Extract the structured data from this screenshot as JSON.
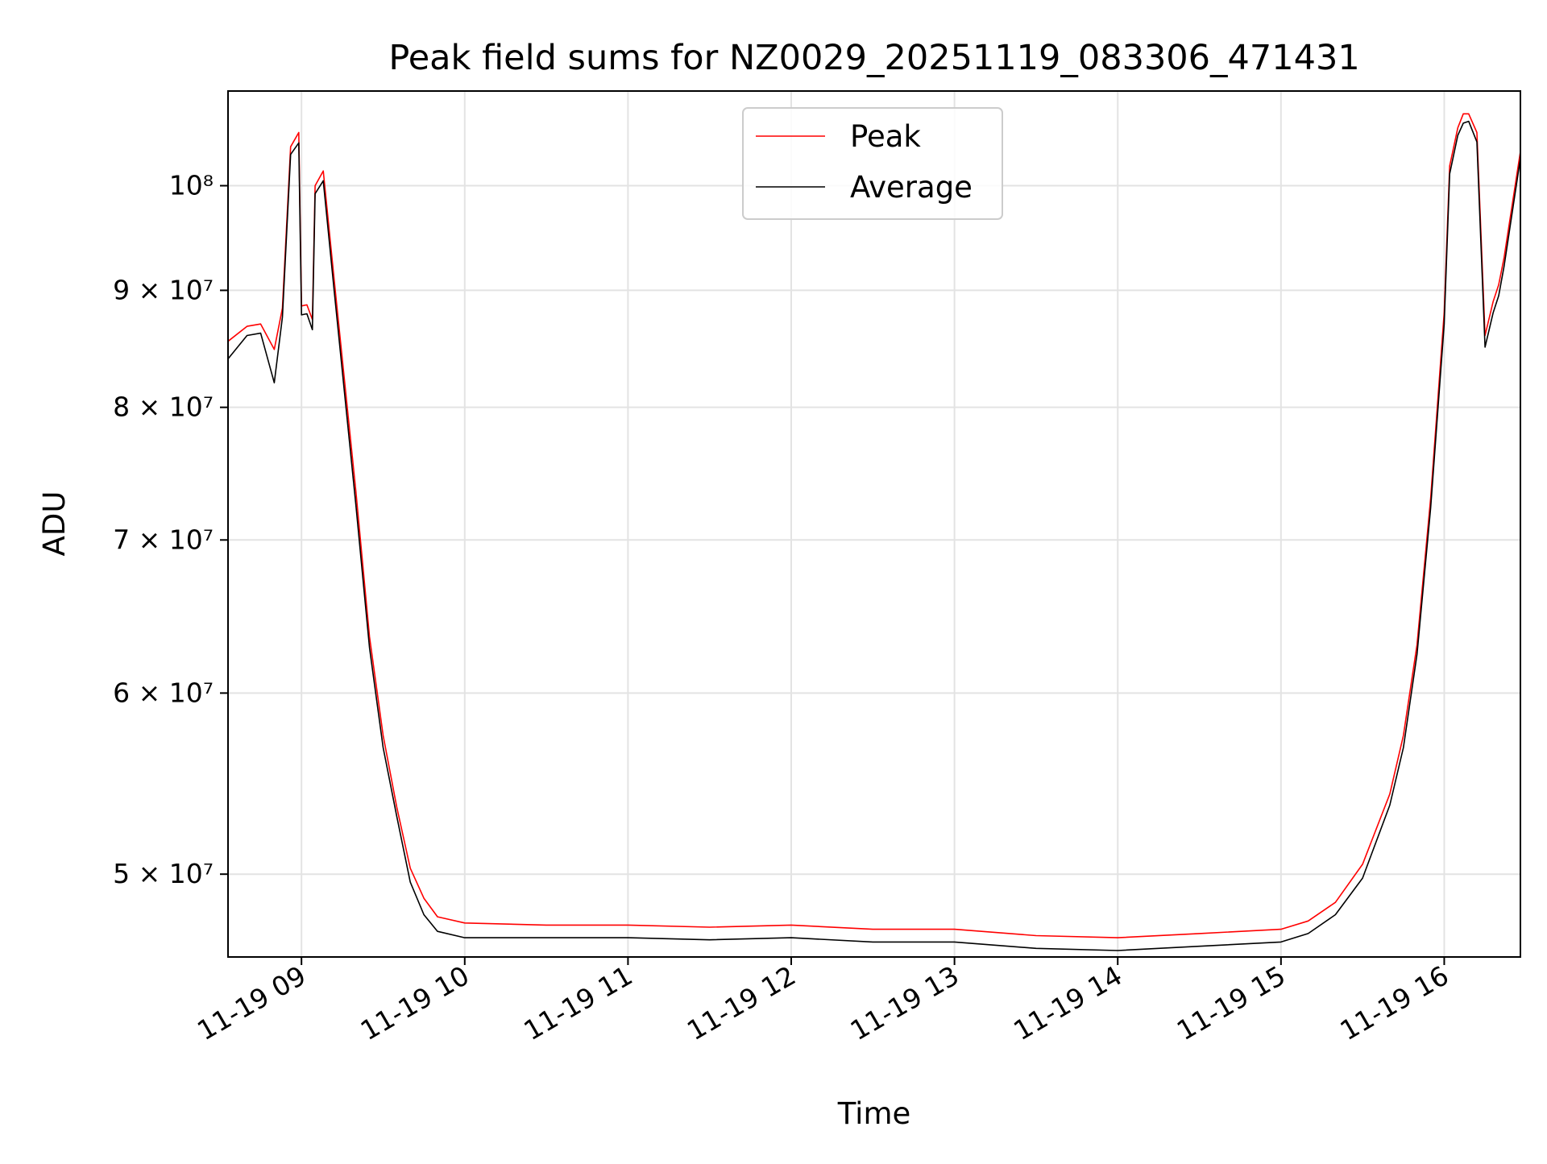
{
  "chart_data": {
    "type": "line",
    "title": "Peak field sums for NZ0029_20251119_083306_471431",
    "xlabel": "Time",
    "ylabel": "ADU",
    "yscale": "log",
    "grid": true,
    "legend_position": "upper center",
    "xlim": [
      "2025-11-19 08:33",
      "2025-11-19 16:28"
    ],
    "ylim": [
      46000000,
      110000000
    ],
    "x_ticks": [
      "11-19 09",
      "11-19 10",
      "11-19 11",
      "11-19 12",
      "11-19 13",
      "11-19 14",
      "11-19 15",
      "11-19 16"
    ],
    "y_ticks": [
      {
        "value": 50000000,
        "label": "5 × 10⁷"
      },
      {
        "value": 60000000,
        "label": "6 × 10⁷"
      },
      {
        "value": 70000000,
        "label": "7 × 10⁷"
      },
      {
        "value": 80000000,
        "label": "8 × 10⁷"
      },
      {
        "value": 90000000,
        "label": "9 × 10⁷"
      },
      {
        "value": 100000000,
        "label": "10⁸"
      }
    ],
    "x": [
      "08:33",
      "08:40",
      "08:45",
      "08:50",
      "08:53",
      "08:56",
      "08:59",
      "09:00",
      "09:02",
      "09:04",
      "09:05",
      "09:08",
      "09:12",
      "09:15",
      "09:20",
      "09:25",
      "09:30",
      "09:35",
      "09:40",
      "09:45",
      "09:50",
      "10:00",
      "10:30",
      "11:00",
      "11:30",
      "12:00",
      "12:30",
      "13:00",
      "13:30",
      "14:00",
      "14:30",
      "15:00",
      "15:10",
      "15:20",
      "15:30",
      "15:40",
      "15:45",
      "15:50",
      "15:55",
      "16:00",
      "16:02",
      "16:05",
      "16:07",
      "16:09",
      "16:12",
      "16:15",
      "16:18",
      "16:20",
      "16:22",
      "16:28"
    ],
    "series": [
      {
        "name": "Peak",
        "color": "#ff0000",
        "values": [
          85500000,
          86800000,
          87000000,
          84800000,
          88400000,
          104000000,
          105500000,
          88600000,
          88700000,
          87400000,
          100000000,
          101500000,
          91000000,
          84000000,
          73500000,
          63500000,
          57500000,
          53500000,
          50300000,
          48800000,
          47900000,
          47600000,
          47500000,
          47500000,
          47400000,
          47500000,
          47300000,
          47300000,
          47000000,
          46900000,
          47100000,
          47300000,
          47700000,
          48600000,
          50500000,
          54200000,
          57500000,
          63000000,
          73000000,
          88000000,
          102000000,
          106000000,
          107500000,
          107500000,
          105500000,
          86000000,
          89000000,
          90500000,
          93000000,
          103500000
        ]
      },
      {
        "name": "Average",
        "color": "#000000",
        "values": [
          84000000,
          86000000,
          86200000,
          82000000,
          87600000,
          103200000,
          104400000,
          87800000,
          87900000,
          86500000,
          99200000,
          100500000,
          90000000,
          83000000,
          72500000,
          62800000,
          56800000,
          53000000,
          49600000,
          48000000,
          47200000,
          46900000,
          46900000,
          46900000,
          46800000,
          46900000,
          46700000,
          46700000,
          46400000,
          46300000,
          46500000,
          46700000,
          47100000,
          48000000,
          49800000,
          53600000,
          56800000,
          62400000,
          72300000,
          87000000,
          101200000,
          105200000,
          106500000,
          106700000,
          104500000,
          85000000,
          88000000,
          89500000,
          92200000,
          102800000
        ]
      }
    ]
  }
}
